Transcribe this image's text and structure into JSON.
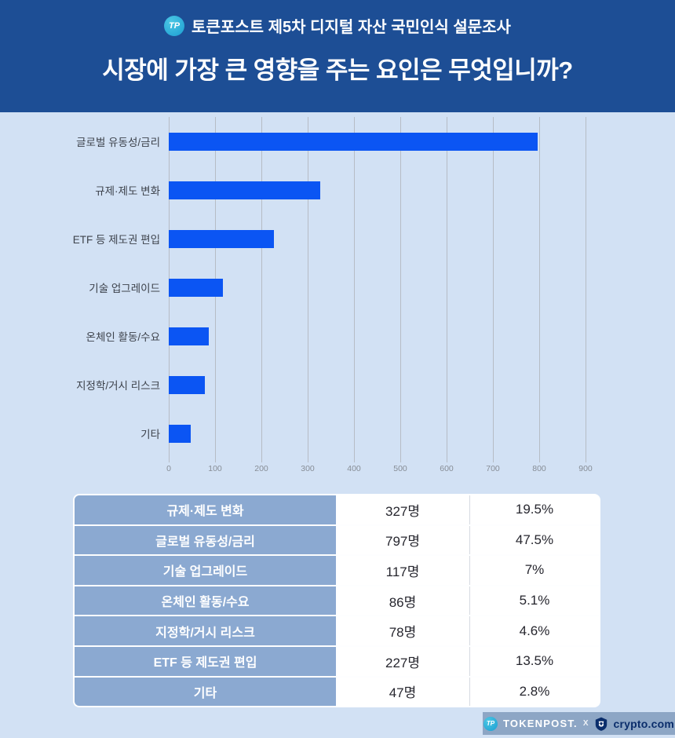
{
  "header": {
    "subtitle": "토큰포스트 제5차 디지털 자산 국민인식 설문조사",
    "title": "시장에 가장 큰 영향을 주는 요인은 무엇입니까?",
    "logo_monogram": "TP"
  },
  "chart_data": {
    "type": "bar",
    "orientation": "horizontal",
    "categories": [
      "글로벌 유동성/금리",
      "규제·제도 변화",
      "ETF 등 제도권 편입",
      "기술 업그레이드",
      "온체인 활동/수요",
      "지정학/거시 리스크",
      "기타"
    ],
    "values": [
      797,
      327,
      227,
      117,
      86,
      78,
      47
    ],
    "xlim": [
      0,
      900
    ],
    "x_ticks": [
      0,
      100,
      200,
      300,
      400,
      500,
      600,
      700,
      800,
      900
    ],
    "grid": true,
    "legend": false,
    "bar_color": "#0b55f3",
    "title": "",
    "xlabel": "",
    "ylabel": ""
  },
  "table": {
    "rows": [
      {
        "label": "규제·제도 변화",
        "count": "327명",
        "percent": "19.5%"
      },
      {
        "label": "글로벌 유동성/금리",
        "count": "797명",
        "percent": "47.5%"
      },
      {
        "label": "기술 업그레이드",
        "count": "117명",
        "percent": "7%"
      },
      {
        "label": "온체인 활동/수요",
        "count": "86명",
        "percent": "5.1%"
      },
      {
        "label": "지정학/거시 리스크",
        "count": "78명",
        "percent": "4.6%"
      },
      {
        "label": "ETF 등 제도권 편입",
        "count": "227명",
        "percent": "13.5%"
      },
      {
        "label": "기타",
        "count": "47명",
        "percent": "2.8%"
      }
    ]
  },
  "footer": {
    "tokenpost_label": "TOKENPOST.",
    "separator": "X",
    "crypto_label": "crypto.com"
  },
  "colors": {
    "header_bg": "#1d4e95",
    "page_bg": "#d2e1f4",
    "bar": "#0b55f3",
    "table_label_bg": "#8ba9d1",
    "footer_bg": "#8da6c5",
    "crypto_navy": "#0a2d6b",
    "tokenpost_teal": "#1b9ed2"
  }
}
